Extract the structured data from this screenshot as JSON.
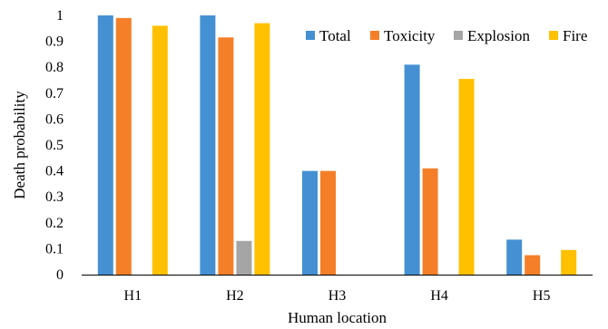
{
  "chart_data": {
    "type": "bar",
    "title": "",
    "xlabel": "Human location",
    "ylabel": "Death probability",
    "ylim": [
      0,
      1
    ],
    "yticks": [
      "0",
      "0.1",
      "0.2",
      "0.3",
      "0.4",
      "0.5",
      "0.6",
      "0.7",
      "0.8",
      "0.9",
      "1"
    ],
    "grid": false,
    "legend_position": "top-right",
    "categories": [
      "H1",
      "H2",
      "H3",
      "H4",
      "H5"
    ],
    "series": [
      {
        "name": "Total",
        "color": "#4590D3",
        "values": [
          1.0,
          1.0,
          0.4,
          0.81,
          0.135
        ]
      },
      {
        "name": "Toxicity",
        "color": "#F47F28",
        "values": [
          0.99,
          0.915,
          0.4,
          0.41,
          0.075
        ]
      },
      {
        "name": "Explosion",
        "color": "#A5A5A5",
        "values": [
          0,
          0.13,
          0,
          0,
          0
        ]
      },
      {
        "name": "Fire",
        "color": "#FFC000",
        "values": [
          0.96,
          0.97,
          0,
          0.755,
          0.095
        ]
      }
    ]
  }
}
